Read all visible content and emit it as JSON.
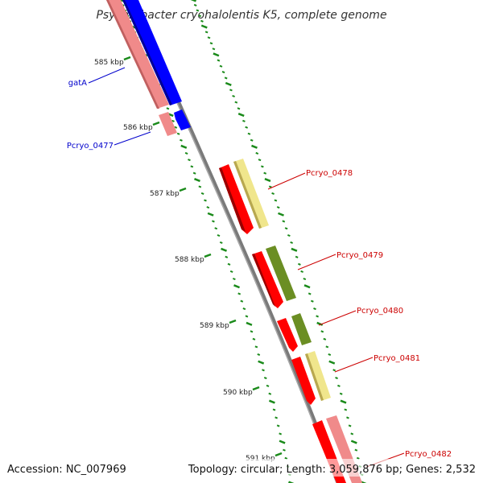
{
  "title": "Psychrobacter cryohalolentis K5, complete genome",
  "footer": {
    "accession": "Accession: NC_007969",
    "summary": "Topology: circular; Length: 3,059,876 bp; Genes: 2,532"
  },
  "colors": {
    "backbone": "#808080",
    "tick": "#1a8a1a",
    "blue_label": "#0000cc",
    "red_label": "#cc0000",
    "cds_red": "#ff0000",
    "cds_pink": "#f08a8a",
    "cds_blue": "#0000ff",
    "cds_olive": "#6b8e23",
    "cds_yellow": "#f0e68c"
  },
  "kbp_ticks": [
    {
      "kbp": 585,
      "label": "585 kbp"
    },
    {
      "kbp": 586,
      "label": "586 kbp"
    },
    {
      "kbp": 587,
      "label": "587 kbp"
    },
    {
      "kbp": 588,
      "label": "588 kbp"
    },
    {
      "kbp": 589,
      "label": "589 kbp"
    },
    {
      "kbp": 590,
      "label": "590 kbp"
    },
    {
      "kbp": 591,
      "label": "591 kbp"
    }
  ],
  "genes": [
    {
      "name": "gatA",
      "strand": "-",
      "color": "cds_blue",
      "label_color": "blue_label"
    },
    {
      "name": "Pcryo_0477",
      "strand": "-",
      "color": "cds_blue",
      "label_color": "blue_label"
    },
    {
      "name": "Pcryo_0478",
      "strand": "+",
      "color": "cds_red",
      "label_color": "red_label"
    },
    {
      "name": "Pcryo_0479",
      "strand": "+",
      "color": "cds_red",
      "label_color": "red_label"
    },
    {
      "name": "Pcryo_0480",
      "strand": "+",
      "color": "cds_red",
      "label_color": "red_label"
    },
    {
      "name": "Pcryo_0481",
      "strand": "+",
      "color": "cds_red",
      "label_color": "red_label"
    },
    {
      "name": "Pcryo_0482",
      "strand": "+",
      "color": "cds_red",
      "label_color": "red_label"
    }
  ]
}
